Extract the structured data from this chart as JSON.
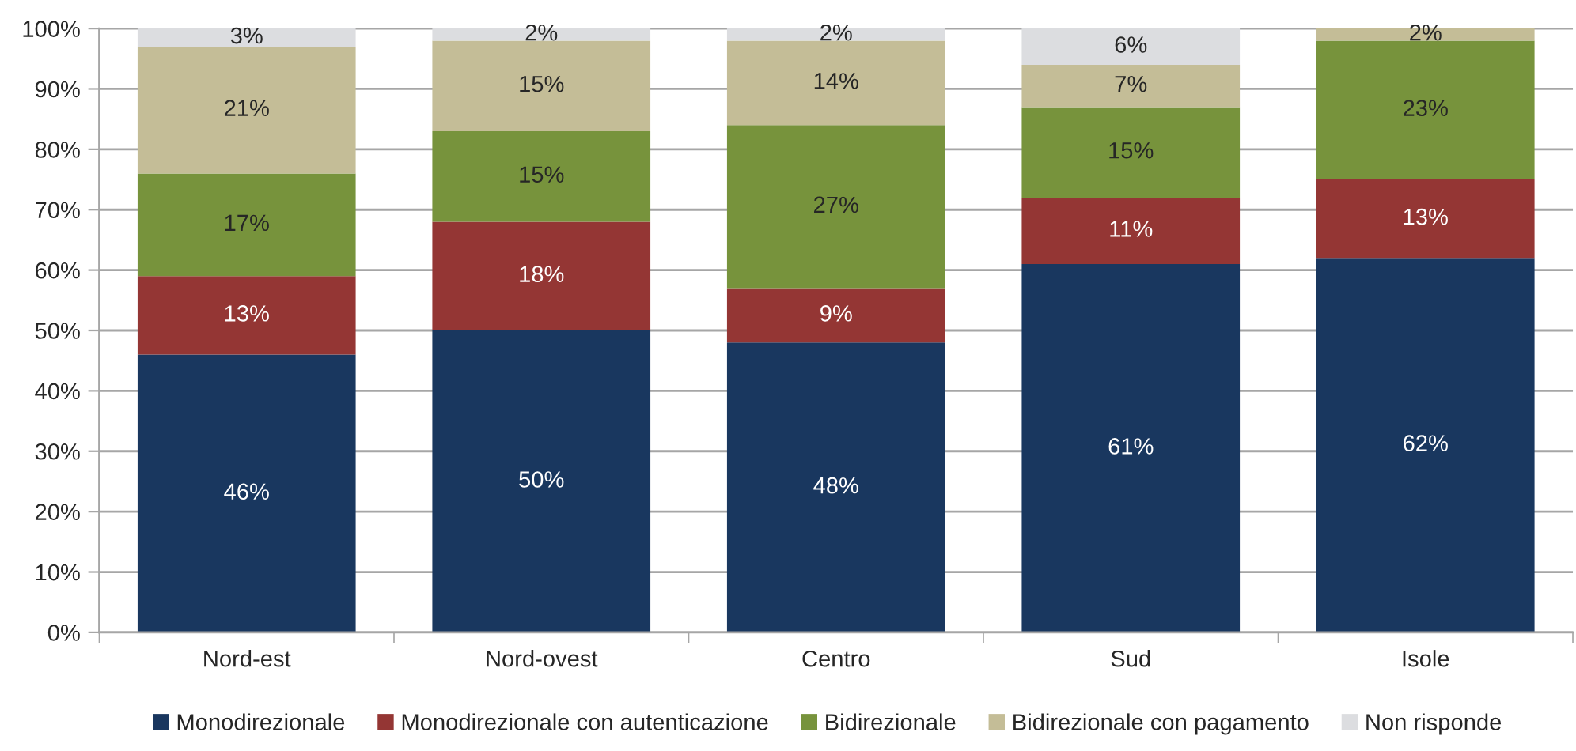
{
  "chart_data": {
    "type": "bar",
    "stacked": true,
    "categories": [
      "Nord-est",
      "Nord-ovest",
      "Centro",
      "Sud",
      "Isole"
    ],
    "series": [
      {
        "name": "Monodirezionale",
        "color": "#19375f",
        "values": [
          46,
          50,
          48,
          61,
          62
        ],
        "value_labels": [
          "46%",
          "50%",
          "48%",
          "61%",
          "62%"
        ]
      },
      {
        "name": "Monodirezionale con autenticazione",
        "color": "#943634",
        "values": [
          13,
          18,
          9,
          11,
          13
        ],
        "value_labels": [
          "13%",
          "18%",
          "9%",
          "11%",
          "13%"
        ]
      },
      {
        "name": "Bidirezionale",
        "color": "#77933c",
        "values": [
          17,
          15,
          27,
          15,
          23
        ],
        "value_labels": [
          "17%",
          "15%",
          "27%",
          "15%",
          "23%"
        ]
      },
      {
        "name": "Bidirezionale con pagamento",
        "color": "#c4bd97",
        "values": [
          21,
          15,
          14,
          7,
          2
        ],
        "value_labels": [
          "21%",
          "15%",
          "14%",
          "7%",
          "2%"
        ]
      },
      {
        "name": "Non risponde",
        "color": "#dcdde0",
        "values": [
          3,
          2,
          2,
          6,
          null
        ],
        "value_labels": [
          "3%",
          "2%",
          "2%",
          "6%",
          null
        ]
      }
    ],
    "ylim": [
      0,
      100
    ],
    "yticks": [
      {
        "value": 0,
        "label": "0%"
      },
      {
        "value": 10,
        "label": "10%"
      },
      {
        "value": 20,
        "label": "20%"
      },
      {
        "value": 30,
        "label": "30%"
      },
      {
        "value": 40,
        "label": "40%"
      },
      {
        "value": 50,
        "label": "50%"
      },
      {
        "value": 60,
        "label": "60%"
      },
      {
        "value": 70,
        "label": "70%"
      },
      {
        "value": 80,
        "label": "80%"
      },
      {
        "value": 90,
        "label": "90%"
      },
      {
        "value": 100,
        "label": "100%"
      }
    ],
    "grid": "y",
    "legend": "bottom"
  }
}
